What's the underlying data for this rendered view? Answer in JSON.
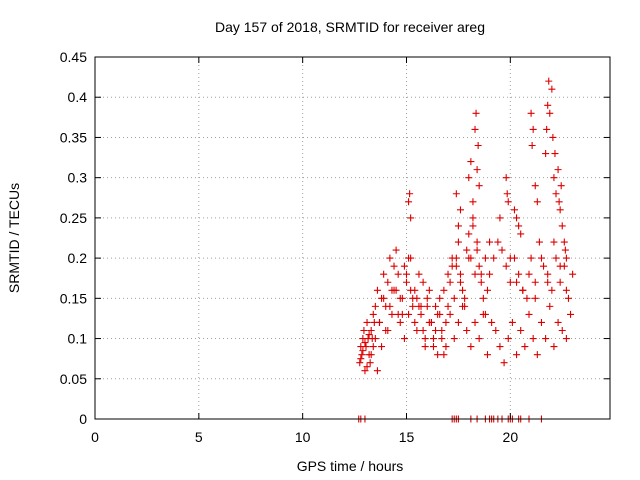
{
  "chart_data": {
    "type": "scatter",
    "title": "Day 157 of 2018, SRMTID for receiver areg",
    "xlabel": "GPS time / hours",
    "ylabel": "SRMTID / TECUs",
    "xlim": [
      0,
      24.8
    ],
    "ylim": [
      0,
      0.45
    ],
    "xticks": [
      0,
      5,
      10,
      15,
      20
    ],
    "xtick_labels": [
      "0",
      "5",
      "10",
      "15",
      "20"
    ],
    "yticks": [
      0,
      0.05,
      0.1,
      0.15,
      0.2,
      0.25,
      0.3,
      0.35,
      0.4,
      0.45
    ],
    "ytick_labels": [
      "0",
      "0.05",
      "0.1",
      "0.15",
      "0.2",
      "0.25",
      "0.3",
      "0.35",
      "0.4",
      "0.45"
    ],
    "grid": true,
    "marker": "plus",
    "series": [
      {
        "name": "SRMTID",
        "color": "#dd0000",
        "x": [
          12.75,
          12.8,
          12.85,
          12.9,
          12.95,
          13.0,
          13.05,
          13.1,
          13.15,
          13.2,
          13.25,
          13.3,
          13.35,
          13.4,
          13.45,
          12.8,
          12.9,
          13.0,
          13.1,
          13.2,
          13.3,
          13.4,
          13.5,
          13.6,
          13.7,
          13.8,
          13.9,
          14.0,
          14.1,
          14.2,
          14.3,
          14.4,
          14.5,
          14.6,
          14.7,
          14.8,
          14.9,
          15.0,
          15.1,
          15.2,
          15.3,
          15.4,
          15.5,
          15.6,
          15.7,
          15.8,
          15.9,
          16.0,
          16.1,
          16.2,
          16.3,
          16.4,
          16.5,
          16.6,
          16.7,
          16.8,
          16.9,
          17.0,
          17.1,
          17.2,
          17.3,
          17.4,
          17.5,
          17.6,
          17.7,
          17.8,
          17.9,
          18.0,
          18.1,
          18.2,
          18.3,
          18.4,
          18.5,
          18.6,
          18.7,
          18.8,
          18.9,
          19.0,
          19.2,
          19.4,
          19.6,
          19.8,
          20.0,
          20.2,
          20.4,
          20.6,
          20.8,
          21.0,
          21.2,
          21.4,
          21.6,
          21.8,
          22.0,
          22.2,
          22.4,
          22.6,
          22.8,
          23.0,
          13.5,
          13.7,
          13.9,
          14.1,
          14.3,
          14.5,
          14.7,
          14.9,
          15.1,
          15.3,
          15.5,
          15.7,
          15.9,
          16.1,
          16.3,
          16.5,
          16.7,
          16.9,
          17.1,
          17.3,
          17.5,
          17.7,
          17.9,
          18.1,
          18.3,
          18.5,
          18.7,
          18.9,
          19.1,
          19.3,
          19.5,
          19.7,
          19.9,
          20.1,
          20.3,
          20.5,
          20.7,
          20.9,
          21.1,
          21.3,
          21.5,
          21.7,
          21.9,
          22.1,
          22.3,
          22.5,
          22.7,
          22.9,
          13.6,
          13.8,
          14.0,
          14.2,
          14.4,
          14.6,
          14.8,
          15.0,
          15.2,
          15.4,
          15.6,
          15.8,
          16.0,
          16.2,
          16.4,
          16.6,
          16.8,
          17.0,
          17.2,
          17.4,
          17.6,
          17.8,
          18.0,
          18.2,
          18.4,
          18.6,
          18.8,
          19.0,
          19.5,
          20.0,
          20.3,
          20.6,
          20.9,
          21.2,
          21.5,
          21.8,
          22.1,
          22.4,
          22.7,
          15.1,
          15.15,
          15.2,
          17.4,
          17.5,
          17.6,
          18.0,
          18.1,
          18.2,
          18.3,
          18.35,
          18.4,
          18.45,
          18.5,
          19.8,
          19.85,
          19.9,
          20.2,
          20.3,
          20.4,
          20.5,
          21.0,
          21.05,
          21.1,
          21.2,
          21.3,
          21.7,
          21.75,
          21.8,
          21.85,
          21.9,
          22.0,
          22.05,
          22.1,
          22.15,
          22.2,
          22.3,
          22.35,
          22.4,
          22.45,
          22.5,
          22.6,
          22.65,
          22.7,
          12.7,
          12.8,
          13.0,
          17.2,
          17.3,
          17.4,
          17.5,
          18.1,
          18.4,
          18.8,
          19.0,
          19.1,
          19.2,
          19.4,
          19.6,
          19.9,
          20.0,
          20.1,
          20.4,
          20.5,
          20.9,
          21.5
        ],
        "y": [
          0.07,
          0.09,
          0.08,
          0.1,
          0.11,
          0.06,
          0.09,
          0.12,
          0.1,
          0.08,
          0.07,
          0.11,
          0.1,
          0.09,
          0.12,
          0.075,
          0.085,
          0.095,
          0.065,
          0.105,
          0.08,
          0.13,
          0.14,
          0.16,
          0.12,
          0.15,
          0.18,
          0.14,
          0.17,
          0.2,
          0.16,
          0.19,
          0.21,
          0.18,
          0.15,
          0.13,
          0.19,
          0.17,
          0.2,
          0.16,
          0.14,
          0.12,
          0.15,
          0.18,
          0.13,
          0.11,
          0.1,
          0.14,
          0.16,
          0.12,
          0.09,
          0.11,
          0.13,
          0.15,
          0.1,
          0.08,
          0.12,
          0.14,
          0.17,
          0.19,
          0.15,
          0.2,
          0.22,
          0.18,
          0.16,
          0.14,
          0.21,
          0.23,
          0.2,
          0.25,
          0.18,
          0.22,
          0.19,
          0.17,
          0.15,
          0.13,
          0.16,
          0.18,
          0.2,
          0.22,
          0.21,
          0.19,
          0.17,
          0.2,
          0.18,
          0.16,
          0.15,
          0.2,
          0.17,
          0.22,
          0.19,
          0.18,
          0.16,
          0.2,
          0.17,
          0.19,
          0.15,
          0.18,
          0.1,
          0.12,
          0.15,
          0.11,
          0.13,
          0.16,
          0.12,
          0.1,
          0.13,
          0.15,
          0.11,
          0.14,
          0.09,
          0.12,
          0.1,
          0.08,
          0.11,
          0.09,
          0.13,
          0.1,
          0.12,
          0.14,
          0.11,
          0.09,
          0.12,
          0.1,
          0.13,
          0.08,
          0.12,
          0.11,
          0.09,
          0.07,
          0.1,
          0.12,
          0.08,
          0.11,
          0.09,
          0.13,
          0.1,
          0.08,
          0.12,
          0.1,
          0.14,
          0.09,
          0.12,
          0.11,
          0.1,
          0.13,
          0.06,
          0.09,
          0.11,
          0.14,
          0.16,
          0.13,
          0.15,
          0.18,
          0.2,
          0.16,
          0.14,
          0.17,
          0.15,
          0.12,
          0.14,
          0.13,
          0.16,
          0.18,
          0.2,
          0.19,
          0.17,
          0.15,
          0.2,
          0.24,
          0.21,
          0.18,
          0.2,
          0.22,
          0.25,
          0.2,
          0.17,
          0.16,
          0.18,
          0.15,
          0.2,
          0.17,
          0.22,
          0.19,
          0.16,
          0.27,
          0.28,
          0.25,
          0.28,
          0.24,
          0.26,
          0.3,
          0.32,
          0.27,
          0.36,
          0.38,
          0.31,
          0.34,
          0.29,
          0.3,
          0.28,
          0.27,
          0.26,
          0.25,
          0.24,
          0.23,
          0.38,
          0.34,
          0.36,
          0.29,
          0.27,
          0.33,
          0.36,
          0.39,
          0.42,
          0.38,
          0.41,
          0.35,
          0.3,
          0.33,
          0.28,
          0.31,
          0.27,
          0.26,
          0.29,
          0.24,
          0.22,
          0.21,
          0.2,
          0.0,
          0.0,
          0.0,
          0.0,
          0.0,
          0.0,
          0.0,
          0.0,
          0.0,
          0.0,
          0.0,
          0.0,
          0.0,
          0.0,
          0.0,
          0.0,
          0.0,
          0.0,
          0.0,
          0.0,
          0.0,
          0.0
        ]
      }
    ]
  }
}
